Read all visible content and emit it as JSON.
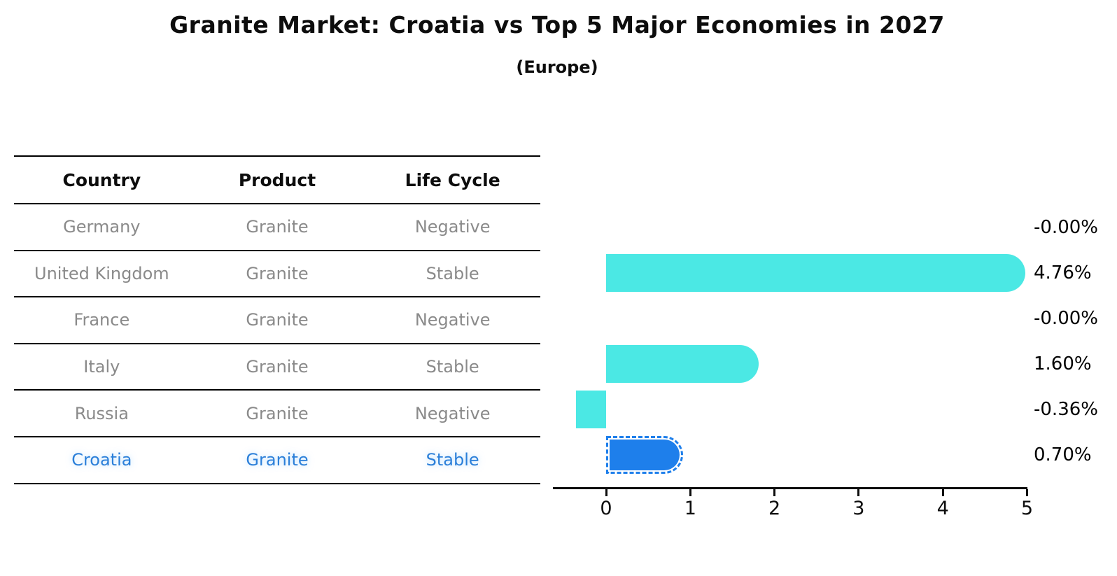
{
  "header": {
    "title": "Granite Market: Croatia vs Top 5 Major Economies in 2027",
    "subtitle": "(Europe)"
  },
  "table": {
    "headers": [
      "Country",
      "Product",
      "Life Cycle"
    ],
    "rows": [
      {
        "country": "Germany",
        "product": "Granite",
        "life_cycle": "Negative",
        "highlight": false
      },
      {
        "country": "United Kingdom",
        "product": "Granite",
        "life_cycle": "Stable",
        "highlight": false
      },
      {
        "country": "France",
        "product": "Granite",
        "life_cycle": "Negative",
        "highlight": false
      },
      {
        "country": "Italy",
        "product": "Granite",
        "life_cycle": "Stable",
        "highlight": false
      },
      {
        "country": "Russia",
        "product": "Granite",
        "life_cycle": "Negative",
        "highlight": false
      },
      {
        "country": "Croatia",
        "product": "Granite",
        "life_cycle": "Stable",
        "highlight": true
      }
    ],
    "highlight_text_color": "#2b7fd9"
  },
  "chart_data": {
    "type": "bar",
    "orientation": "horizontal",
    "title": "Granite Market: Croatia vs Top 5 Major Economies in 2027",
    "subtitle": "(Europe)",
    "categories": [
      "Germany",
      "United Kingdom",
      "France",
      "Italy",
      "Russia",
      "Croatia"
    ],
    "values": [
      -0.0,
      4.76,
      -0.0,
      1.6,
      -0.36,
      0.7
    ],
    "value_labels": [
      "-0.00%",
      "4.76%",
      "-0.00%",
      "1.60%",
      "-0.36%",
      "0.70%"
    ],
    "xticks": [
      0,
      1,
      2,
      3,
      4,
      5
    ],
    "xlim": [
      -0.65,
      5
    ],
    "grid": false,
    "legend": "none",
    "bar_color": "#4be8e4",
    "highlight_bar_color": "#1e7feb",
    "highlight_index": 5,
    "axis_color": "#0d0d0d"
  }
}
